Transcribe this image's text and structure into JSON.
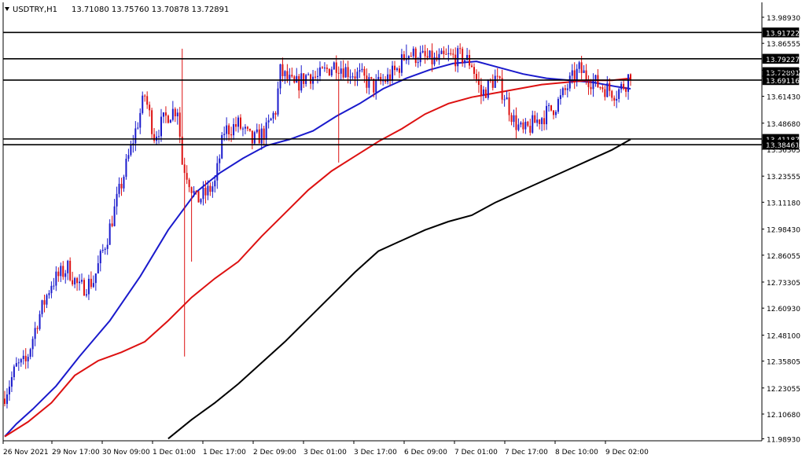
{
  "header": {
    "symbol": "USDTRY,H1",
    "ohlc": "13.71080 13.75760 13.70878 13.72891"
  },
  "colors": {
    "bull": "#1a1acc",
    "bear": "#dd1111",
    "ma_fast": "#1a1acc",
    "ma_mid": "#dd1111",
    "ma_slow": "#000000",
    "level": "#000000",
    "background": "#ffffff"
  },
  "chart_data": {
    "type": "candlestick",
    "symbol": "USDTRY",
    "timeframe": "H1",
    "ylim": [
      11.98,
      14.06
    ],
    "y_ticks": [
      "11.98930",
      "12.10680",
      "12.23055",
      "12.35805",
      "12.48100",
      "12.60930",
      "12.73305",
      "12.86055",
      "12.98430",
      "13.11180",
      "13.23555",
      "13.36305",
      "13.48680",
      "13.61430",
      "13.73805",
      "13.86555",
      "13.98930"
    ],
    "x_ticks": [
      "26 Nov 2021",
      "29 Nov 17:00",
      "30 Nov 09:00",
      "1 Dec 01:00",
      "1 Dec 17:00",
      "2 Dec 09:00",
      "3 Dec 01:00",
      "3 Dec 17:00",
      "6 Dec 09:00",
      "7 Dec 01:00",
      "7 Dec 17:00",
      "8 Dec 10:00",
      "9 Dec 02:00"
    ],
    "horizontal_levels": [
      {
        "value": 13.91722,
        "label": "13.91722"
      },
      {
        "value": 13.79227,
        "label": "13.79227"
      },
      {
        "value": 13.69116,
        "label": "13.69116"
      },
      {
        "value": 13.41187,
        "label": "13.41187"
      },
      {
        "value": 13.38461,
        "label": "13.38461"
      }
    ],
    "current_price": {
      "value": 13.72891,
      "label": "13.72891"
    },
    "moving_averages": [
      {
        "color": "blue",
        "points": [
          [
            0,
            12.0
          ],
          [
            5,
            12.06
          ],
          [
            12,
            12.13
          ],
          [
            22,
            12.24
          ],
          [
            32,
            12.38
          ],
          [
            45,
            12.55
          ],
          [
            58,
            12.76
          ],
          [
            70,
            12.98
          ],
          [
            82,
            13.16
          ],
          [
            92,
            13.25
          ],
          [
            102,
            13.32
          ],
          [
            112,
            13.38
          ],
          [
            122,
            13.41
          ],
          [
            132,
            13.45
          ],
          [
            142,
            13.52
          ],
          [
            152,
            13.58
          ],
          [
            162,
            13.65
          ],
          [
            172,
            13.7
          ],
          [
            182,
            13.74
          ],
          [
            192,
            13.77
          ],
          [
            202,
            13.78
          ],
          [
            212,
            13.75
          ],
          [
            222,
            13.72
          ],
          [
            232,
            13.7
          ],
          [
            242,
            13.69
          ],
          [
            252,
            13.68
          ],
          [
            262,
            13.66
          ],
          [
            268,
            13.65
          ]
        ]
      },
      {
        "color": "red",
        "points": [
          [
            0,
            12.0
          ],
          [
            10,
            12.07
          ],
          [
            20,
            12.16
          ],
          [
            30,
            12.29
          ],
          [
            40,
            12.36
          ],
          [
            50,
            12.4
          ],
          [
            60,
            12.45
          ],
          [
            70,
            12.55
          ],
          [
            80,
            12.66
          ],
          [
            90,
            12.75
          ],
          [
            100,
            12.83
          ],
          [
            110,
            12.95
          ],
          [
            120,
            13.06
          ],
          [
            130,
            13.17
          ],
          [
            140,
            13.26
          ],
          [
            150,
            13.33
          ],
          [
            160,
            13.4
          ],
          [
            170,
            13.46
          ],
          [
            180,
            13.53
          ],
          [
            190,
            13.58
          ],
          [
            200,
            13.61
          ],
          [
            210,
            13.63
          ],
          [
            220,
            13.65
          ],
          [
            230,
            13.67
          ],
          [
            240,
            13.68
          ],
          [
            250,
            13.69
          ],
          [
            260,
            13.69
          ],
          [
            268,
            13.7
          ]
        ]
      },
      {
        "color": "black",
        "points": [
          [
            70,
            11.99
          ],
          [
            80,
            12.08
          ],
          [
            90,
            12.16
          ],
          [
            100,
            12.25
          ],
          [
            110,
            12.35
          ],
          [
            120,
            12.45
          ],
          [
            130,
            12.56
          ],
          [
            140,
            12.67
          ],
          [
            150,
            12.78
          ],
          [
            160,
            12.88
          ],
          [
            170,
            12.93
          ],
          [
            180,
            12.98
          ],
          [
            190,
            13.02
          ],
          [
            200,
            13.05
          ],
          [
            210,
            13.11
          ],
          [
            220,
            13.16
          ],
          [
            230,
            13.21
          ],
          [
            240,
            13.26
          ],
          [
            250,
            13.31
          ],
          [
            260,
            13.36
          ],
          [
            268,
            13.41
          ]
        ]
      }
    ],
    "waypoints": [
      [
        0,
        12.2
      ],
      [
        5,
        12.33
      ],
      [
        9,
        12.35
      ],
      [
        14,
        12.55
      ],
      [
        20,
        12.73
      ],
      [
        27,
        12.8
      ],
      [
        32,
        12.7
      ],
      [
        38,
        12.74
      ],
      [
        44,
        12.95
      ],
      [
        50,
        13.2
      ],
      [
        56,
        13.45
      ],
      [
        60,
        13.62
      ],
      [
        64,
        13.43
      ],
      [
        70,
        13.53
      ],
      [
        74,
        13.56
      ],
      [
        76,
        13.3
      ],
      [
        78,
        13.25
      ],
      [
        82,
        13.12
      ],
      [
        86,
        13.15
      ],
      [
        90,
        13.2
      ],
      [
        94,
        13.45
      ],
      [
        100,
        13.48
      ],
      [
        106,
        13.4
      ],
      [
        112,
        13.45
      ],
      [
        116,
        13.55
      ],
      [
        118,
        13.73
      ],
      [
        124,
        13.66
      ],
      [
        130,
        13.72
      ],
      [
        134,
        13.7
      ],
      [
        138,
        13.74
      ],
      [
        142,
        13.77
      ],
      [
        146,
        13.74
      ],
      [
        152,
        13.71
      ],
      [
        158,
        13.66
      ],
      [
        164,
        13.7
      ],
      [
        168,
        13.74
      ],
      [
        172,
        13.82
      ],
      [
        178,
        13.8
      ],
      [
        184,
        13.78
      ],
      [
        190,
        13.8
      ],
      [
        196,
        13.8
      ],
      [
        200,
        13.77
      ],
      [
        204,
        13.62
      ],
      [
        210,
        13.7
      ],
      [
        214,
        13.62
      ],
      [
        218,
        13.5
      ],
      [
        222,
        13.44
      ],
      [
        228,
        13.5
      ],
      [
        234,
        13.55
      ],
      [
        238,
        13.6
      ],
      [
        242,
        13.68
      ],
      [
        246,
        13.74
      ],
      [
        250,
        13.7
      ],
      [
        254,
        13.67
      ],
      [
        258,
        13.65
      ],
      [
        262,
        13.63
      ],
      [
        266,
        13.68
      ],
      [
        268,
        13.73
      ]
    ],
    "spikes": [
      [
        76,
        13.84
      ],
      [
        77,
        12.38
      ],
      [
        80,
        12.83
      ],
      [
        143,
        13.3
      ],
      [
        172,
        13.86
      ]
    ],
    "candle_count": 269
  }
}
